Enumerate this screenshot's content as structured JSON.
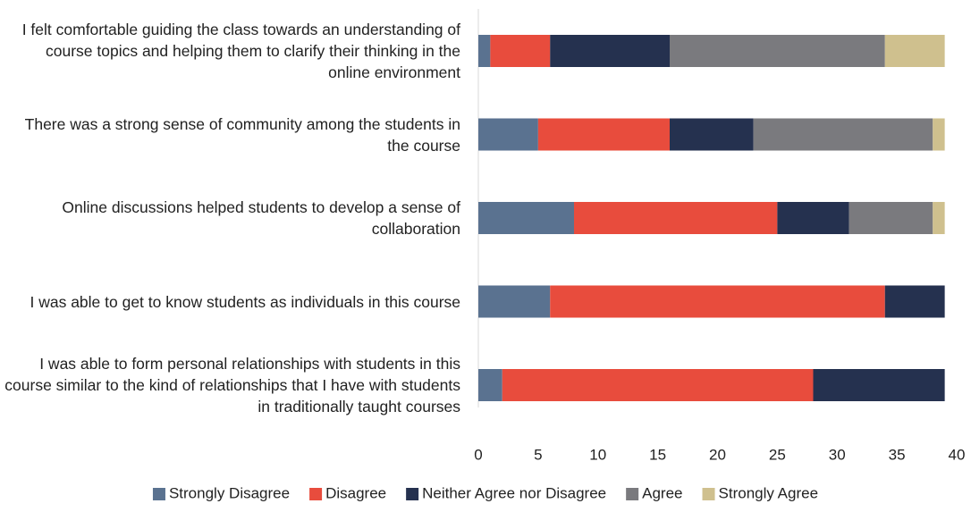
{
  "chart_data": {
    "type": "stacked_barh",
    "categories": [
      "I felt comfortable guiding the class towards an understanding of course topics and helping them to clarify their thinking in the online environment",
      "There was a strong sense of community among the students in the course",
      "Online discussions helped students to develop a sense of collaboration",
      "I was able to get to know students as individuals in this course",
      "I was able to form personal relationships with students in this course similar to the kind of relationships that I have with students in traditionally taught courses"
    ],
    "series": [
      {
        "name": "Strongly Disagree",
        "color": "#5a7290",
        "values": [
          1,
          5,
          8,
          6,
          2
        ]
      },
      {
        "name": "Disagree",
        "color": "#e84c3d",
        "values": [
          5,
          11,
          17,
          28,
          26
        ]
      },
      {
        "name": "Neither Agree nor Disagree",
        "color": "#25314f",
        "values": [
          10,
          7,
          6,
          5,
          11
        ]
      },
      {
        "name": "Agree",
        "color": "#7a7a7e",
        "values": [
          18,
          15,
          7,
          0,
          0
        ]
      },
      {
        "name": "Strongly Agree",
        "color": "#cfc08e",
        "values": [
          5,
          1,
          1,
          0,
          0
        ]
      }
    ],
    "xlim": [
      0,
      40
    ],
    "xticks": [
      0,
      5,
      10,
      15,
      20,
      25,
      30,
      35,
      40
    ],
    "legend": "bottom"
  }
}
